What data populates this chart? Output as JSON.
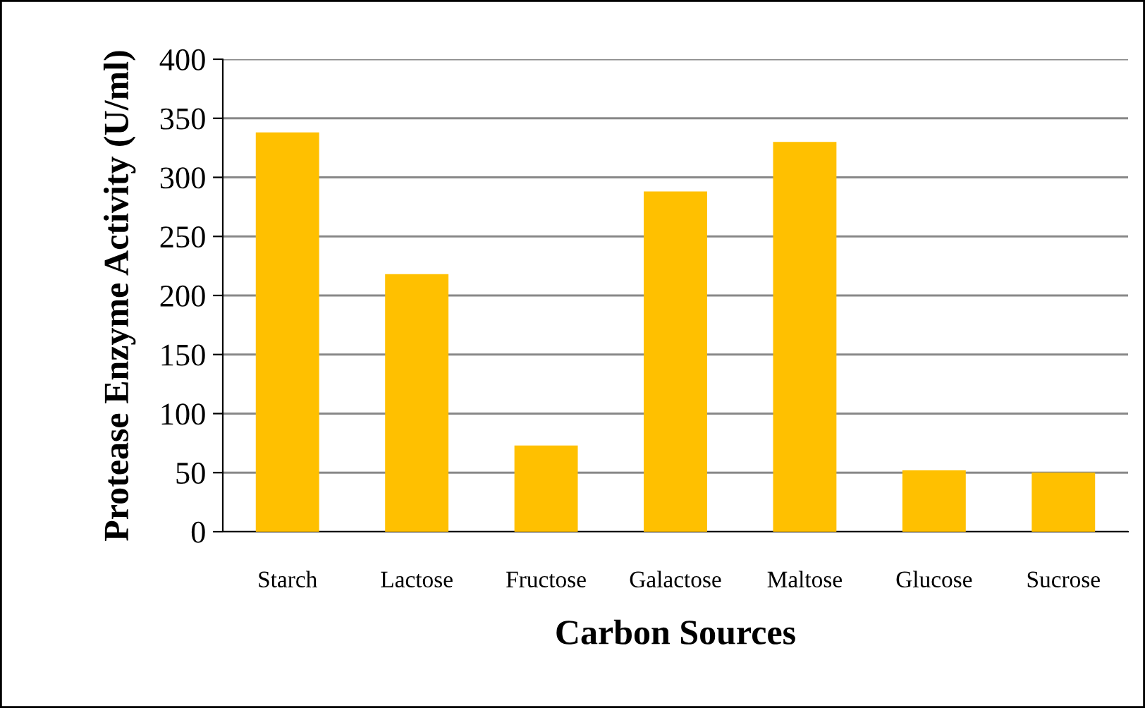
{
  "chart_data": {
    "type": "bar",
    "xlabel": "Carbon Sources",
    "ylabel": "Protease Enzyme Activity (U/ml)",
    "categories": [
      "Starch",
      "Lactose",
      "Fructose",
      "Galactose",
      "Maltose",
      "Glucose",
      "Sucrose"
    ],
    "values": [
      338,
      218,
      73,
      288,
      330,
      52,
      50
    ],
    "color": "#ffc000",
    "ylim": [
      0,
      400
    ],
    "yticks": [
      0,
      50,
      100,
      150,
      200,
      250,
      300,
      350,
      400
    ],
    "grid": "y",
    "legend": false
  }
}
